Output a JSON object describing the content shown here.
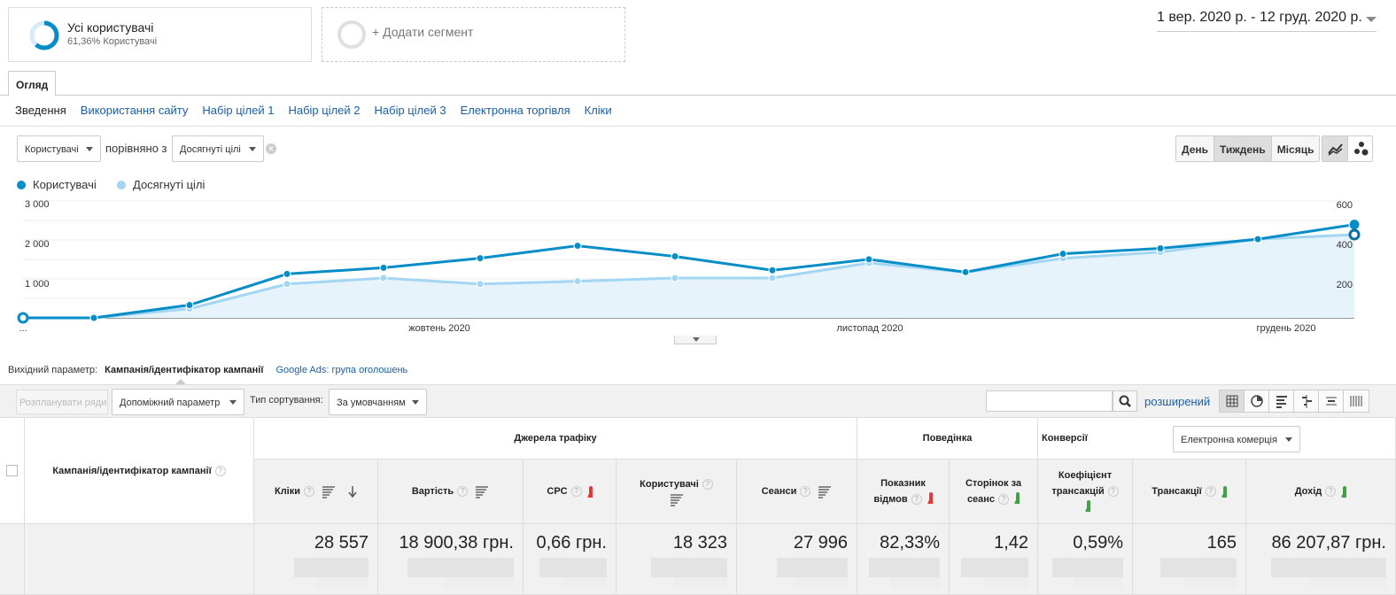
{
  "segments": {
    "primary": {
      "title": "Усі користувачі",
      "subtitle": "61,36% Користувачі",
      "percent": 61.36
    },
    "add_label": "+ Додати сегмент"
  },
  "date_range": "1 вер. 2020 р. - 12 груд. 2020 р.",
  "tab": "Огляд",
  "subnav": [
    "Зведення",
    "Використання сайту",
    "Набір цілей 1",
    "Набір цілей 2",
    "Набір цілей 3",
    "Електронна торгівля",
    "Кліки"
  ],
  "metric_select": "Користувачі",
  "compare_text": "порівняно з",
  "compare_select": "Досягнуті цілі",
  "period_buttons": [
    "День",
    "Тиждень",
    "Місяць"
  ],
  "active_period": "Тиждень",
  "chart_data": {
    "type": "line",
    "series": [
      {
        "name": "Користувачі",
        "axis": "left",
        "color": "#058dc7",
        "values": [
          0,
          0,
          350,
          1200,
          1370,
          1630,
          1970,
          1680,
          1300,
          1600,
          1250,
          1750,
          1900,
          2150,
          2550
        ]
      },
      {
        "name": "Досягнуті цілі",
        "axis": "right",
        "color": "#a3d6f2",
        "values": [
          0,
          0,
          50,
          185,
          218,
          185,
          200,
          218,
          218,
          300,
          250,
          325,
          360,
          430,
          455
        ]
      }
    ],
    "y_left_ticks": [
      "3 000",
      "2 000",
      "1 000"
    ],
    "y_left_range": [
      0,
      3000
    ],
    "y_right_ticks": [
      "600",
      "400",
      "200"
    ],
    "y_right_range": [
      0,
      600
    ],
    "x_labels": [
      "...",
      "жовтень 2020",
      "листопад 2020",
      "грудень 2020"
    ],
    "grid": true
  },
  "primary_dimension": {
    "label": "Вихідний параметр:",
    "active": "Кампанія/ідентифікатор кампанії",
    "other": "Google Ads: група оголошень"
  },
  "toolbar": {
    "plot_rows": "Розпланувати ряди",
    "secondary": "Допоміжний параметр",
    "sort_label": "Тип сортування:",
    "sort_value": "За умовчанням",
    "advanced": "розширений"
  },
  "table": {
    "dimension_header": "Кампанія/ідентифікатор кампанії",
    "groups": {
      "acquisition": "Джерела трафіку",
      "behavior": "Поведінка",
      "conversions": "Конверсії",
      "conversion_select": "Електронна комерція"
    },
    "columns": [
      "Кліки",
      "Вартість",
      "CPC",
      "Користувачі",
      "Сеанси",
      "Показник відмов",
      "Сторінок за сеанс",
      "Коефіцієнт трансакцій",
      "Трансакції",
      "Дохід"
    ],
    "totals": [
      "28 557",
      "18 900,38 грн.",
      "0,66 грн.",
      "18 323",
      "27 996",
      "82,33%",
      "1,42",
      "0,59%",
      "165",
      "86 207,87 грн."
    ]
  }
}
